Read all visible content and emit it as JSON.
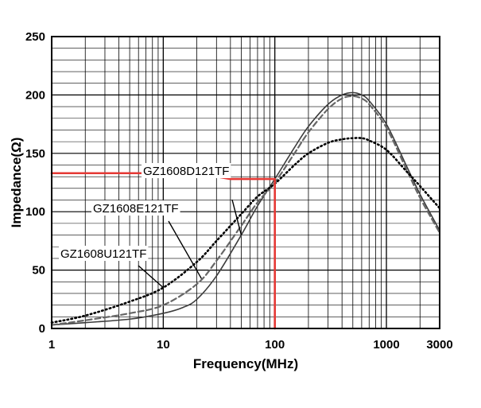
{
  "chart_data": {
    "type": "line",
    "xlabel": "Frequency(MHz)",
    "ylabel": "Impedance(Ω)",
    "x_scale": "log",
    "xlim": [
      1,
      3000
    ],
    "ylim": [
      0,
      250
    ],
    "grid": true,
    "x_tick_labels": [
      {
        "value": 1,
        "label": "1"
      },
      {
        "value": 10,
        "label": "10"
      },
      {
        "value": 100,
        "label": "100"
      },
      {
        "value": 1000,
        "label": "1000"
      },
      {
        "value": 3000,
        "label": "3000"
      }
    ],
    "y_tick_labels": [
      {
        "value": 0,
        "label": "0"
      },
      {
        "value": 50,
        "label": "50"
      },
      {
        "value": 100,
        "label": "100"
      },
      {
        "value": 150,
        "label": "150"
      },
      {
        "value": 200,
        "label": "200"
      },
      {
        "value": 250,
        "label": "250"
      }
    ],
    "series": [
      {
        "name": "GZ1608D121TF",
        "style": "solid-thin",
        "color": "#3c3c3c",
        "x": [
          1,
          2,
          5,
          10,
          15,
          20,
          30,
          50,
          70,
          100,
          150,
          200,
          300,
          400,
          500,
          600,
          700,
          1000,
          1500,
          2000,
          3000
        ],
        "y": [
          3,
          5,
          8,
          13,
          18,
          25,
          45,
          80,
          105,
          128,
          155,
          173,
          192,
          200,
          202,
          200,
          195,
          175,
          140,
          115,
          84
        ]
      },
      {
        "name": "GZ1608E121TF",
        "style": "dashed",
        "color": "#666666",
        "x": [
          1,
          2,
          5,
          10,
          20,
          30,
          50,
          70,
          100,
          150,
          200,
          300,
          400,
          500,
          600,
          700,
          1000,
          1500,
          2000,
          3000
        ],
        "y": [
          3,
          7,
          13,
          20,
          38,
          58,
          88,
          108,
          125,
          150,
          168,
          188,
          197,
          199,
          197,
          192,
          172,
          137,
          112,
          82
        ]
      },
      {
        "name": "GZ1608U121TF",
        "style": "dotted",
        "color": "#000000",
        "x": [
          1,
          2,
          5,
          10,
          20,
          30,
          50,
          70,
          100,
          150,
          200,
          300,
          400,
          500,
          600,
          700,
          1000,
          1500,
          2000,
          3000
        ],
        "y": [
          5,
          11,
          23,
          35,
          57,
          75,
          98,
          113,
          124,
          140,
          150,
          159,
          162,
          163,
          163,
          161,
          153,
          135,
          122,
          103
        ]
      },
      {
        "name": "Reference",
        "style": "solid-thick",
        "color": "#e53935",
        "x": [
          1,
          20,
          40,
          100,
          100
        ],
        "y": [
          133,
          133,
          128,
          128,
          0
        ]
      }
    ],
    "annotations": [
      {
        "text": "GZ1608D121TF",
        "target": "GZ1608D121TF"
      },
      {
        "text": "GZ1608E121TF",
        "target": "GZ1608E121TF"
      },
      {
        "text": "GZ1608U121TF",
        "target": "GZ1608U121TF"
      }
    ]
  }
}
